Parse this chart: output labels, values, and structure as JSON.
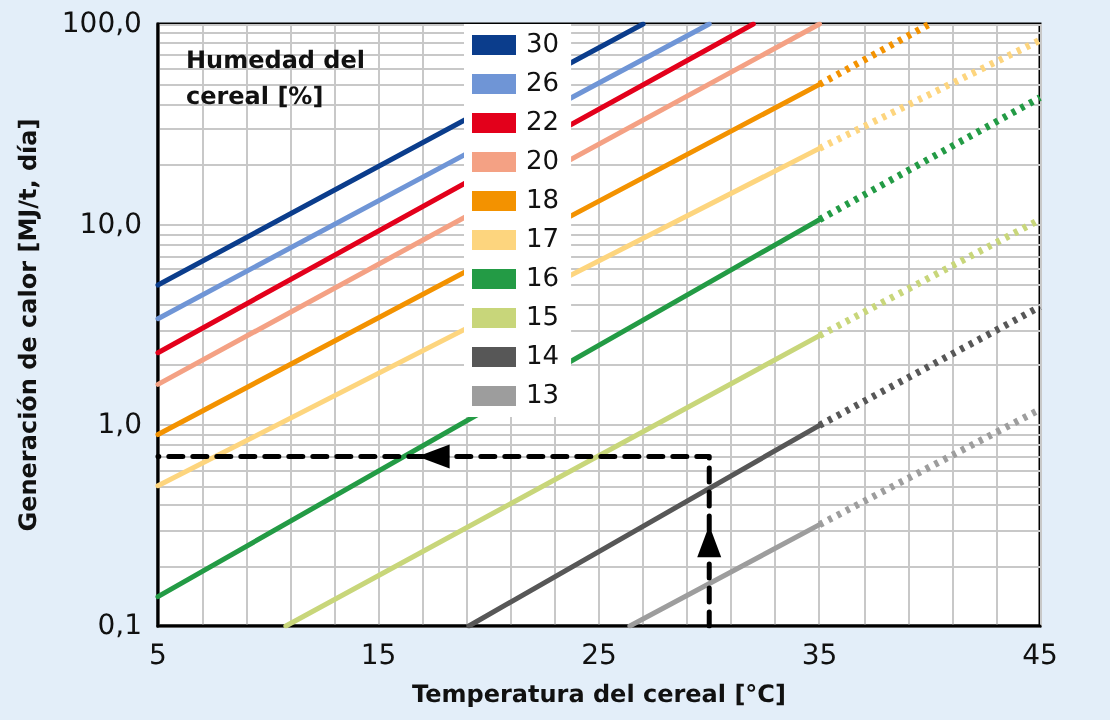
{
  "chart_data": {
    "type": "line",
    "xlabel": "Temperatura del cereal [°C]",
    "ylabel": "Generación de calor [MJ/t, día]",
    "legend_title": "Humedad del cereal [%]",
    "log": "y",
    "grid": true,
    "legend": "top left",
    "marker": "none",
    "xlim": [
      5,
      45
    ],
    "ylim": [
      0.1,
      100
    ],
    "xticks": [
      5,
      {
        "value": 7,
        "label": null
      },
      {
        "value": 9,
        "label": null
      },
      {
        "value": 11,
        "label": null
      },
      {
        "value": 13,
        "label": null
      },
      15,
      {
        "value": 17,
        "label": null
      },
      {
        "value": 19,
        "label": null
      },
      {
        "value": 21,
        "label": null
      },
      {
        "value": 23,
        "label": null
      },
      25,
      {
        "value": 27,
        "label": null
      },
      {
        "value": 29,
        "label": null
      },
      {
        "value": 31,
        "label": null
      },
      {
        "value": 33,
        "label": null
      },
      35,
      {
        "value": 37,
        "label": null
      },
      {
        "value": 39,
        "label": null
      },
      {
        "value": 41,
        "label": null
      },
      {
        "value": 43,
        "label": null
      },
      45
    ],
    "yticks": [
      {
        "value": 0.1,
        "label": "0,1"
      },
      {
        "value": 0.2,
        "label": null
      },
      {
        "value": 0.3,
        "label": null
      },
      {
        "value": 0.4,
        "label": null
      },
      {
        "value": 0.5,
        "label": null
      },
      {
        "value": 0.6,
        "label": null
      },
      {
        "value": 0.7,
        "label": null
      },
      {
        "value": 0.8,
        "label": null
      },
      {
        "value": 0.9,
        "label": null
      },
      {
        "value": 1,
        "label": "1,0"
      },
      {
        "value": 2,
        "label": null
      },
      {
        "value": 3,
        "label": null
      },
      {
        "value": 4,
        "label": null
      },
      {
        "value": 5,
        "label": null
      },
      {
        "value": 6,
        "label": null
      },
      {
        "value": 7,
        "label": null
      },
      {
        "value": 8,
        "label": null
      },
      {
        "value": 9,
        "label": null
      },
      {
        "value": 10,
        "label": "10,0"
      },
      {
        "value": 20,
        "label": null
      },
      {
        "value": 30,
        "label": null
      },
      {
        "value": 40,
        "label": null
      },
      {
        "value": 50,
        "label": null
      },
      {
        "value": 60,
        "label": null
      },
      {
        "value": 70,
        "label": null
      },
      {
        "value": 80,
        "label": null
      },
      {
        "value": 90,
        "label": null
      },
      {
        "value": 100,
        "label": "100,0"
      }
    ],
    "series": [
      {
        "name": "30",
        "color": "#0b3d8c",
        "line_style": "solid",
        "x": [
          5,
          27
        ],
        "values": [
          5,
          100
        ]
      },
      {
        "name": "26",
        "color": "#6f95d6",
        "line_style": "solid",
        "x": [
          5,
          30
        ],
        "values": [
          3.4,
          100
        ]
      },
      {
        "name": "22",
        "color": "#e3001b",
        "line_style": "solid",
        "x": [
          5,
          32
        ],
        "values": [
          2.3,
          100
        ]
      },
      {
        "name": "20",
        "color": "#f4a184",
        "line_style": "solid",
        "x": [
          5,
          35
        ],
        "values": [
          1.6,
          100
        ]
      },
      {
        "name": "18",
        "color": "#f39200",
        "line_style": "solid",
        "x": [
          5,
          35
        ],
        "values": [
          0.9,
          50
        ]
      },
      {
        "color": "#f39200",
        "line_style": "dotted",
        "x": [
          35,
          40
        ],
        "values": [
          50,
          100
        ]
      },
      {
        "name": "17",
        "color": "#fdd57e",
        "line_style": "solid",
        "x": [
          5,
          35
        ],
        "values": [
          0.5,
          24
        ]
      },
      {
        "color": "#fdd57e",
        "line_style": "dotted",
        "x": [
          35,
          45
        ],
        "values": [
          24,
          83
        ]
      },
      {
        "name": "16",
        "color": "#239b45",
        "line_style": "solid",
        "x": [
          5,
          35
        ],
        "values": [
          0.14,
          10.6
        ]
      },
      {
        "color": "#239b45",
        "line_style": "dotted",
        "x": [
          35,
          45
        ],
        "values": [
          10.6,
          43
        ]
      },
      {
        "name": "15",
        "color": "#c8d67a",
        "line_style": "solid",
        "x": [
          10.8,
          35
        ],
        "values": [
          0.1,
          2.8
        ]
      },
      {
        "color": "#c8d67a",
        "line_style": "dotted",
        "x": [
          35,
          45
        ],
        "values": [
          2.8,
          10.6
        ]
      },
      {
        "name": "14",
        "color": "#575757",
        "line_style": "solid",
        "x": [
          19.1,
          35
        ],
        "values": [
          0.1,
          1
        ]
      },
      {
        "color": "#575757",
        "line_style": "dotted",
        "x": [
          35,
          45
        ],
        "values": [
          1,
          3.9
        ]
      },
      {
        "name": "13",
        "color": "#9d9d9d",
        "line_style": "solid",
        "x": [
          26.4,
          35
        ],
        "values": [
          0.1,
          0.32
        ]
      },
      {
        "color": "#9d9d9d",
        "line_style": "dotted",
        "x": [
          35,
          45
        ],
        "values": [
          0.32,
          1.2
        ]
      },
      {
        "color": "#000000",
        "line_style": "dashed",
        "x": [
          30,
          30,
          5
        ],
        "values": [
          0.1,
          0.7,
          0.7
        ]
      }
    ]
  }
}
